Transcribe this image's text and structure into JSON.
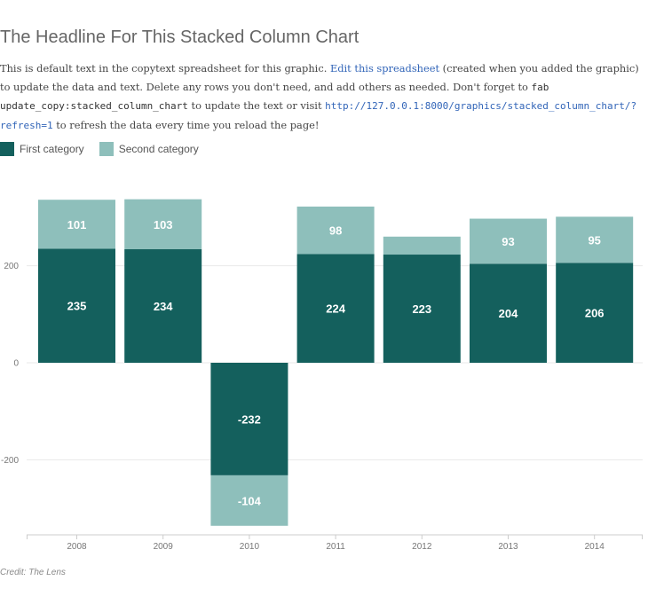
{
  "headline": "The Headline For This Stacked Column Chart",
  "intro": {
    "text_1": "This is default text in the copytext spreadsheet for this graphic. ",
    "link_label": "Edit this spreadsheet",
    "text_2": " (created when you added the graphic) to update the data and text. Delete any rows you don't need, and add others as needed. Don't forget to ",
    "command": "fab update_copy:stacked_column_chart",
    "text_3": " to update the text or visit ",
    "url": "http://127.0.0.1:8000/graphics/stacked_column_chart/?refresh=1",
    "text_4": " to refresh the data every time you reload the page!"
  },
  "legend": [
    {
      "label": "First category",
      "color": "#14605d"
    },
    {
      "label": "Second category",
      "color": "#8ebfbb"
    }
  ],
  "credit": "Credit: The Lens",
  "chart_data": {
    "type": "bar",
    "stacked": true,
    "categories": [
      "2008",
      "2009",
      "2010",
      "2011",
      "2012",
      "2013",
      "2014"
    ],
    "series": [
      {
        "name": "First category",
        "color": "#14605d",
        "values": [
          235,
          234,
          -232,
          224,
          223,
          204,
          206
        ]
      },
      {
        "name": "Second category",
        "color": "#8ebfbb",
        "values": [
          101,
          103,
          -104,
          98,
          37,
          93,
          95
        ]
      }
    ],
    "data_labels": [
      [
        "235",
        "234",
        "-232",
        "224",
        "223",
        "204",
        "206"
      ],
      [
        "101",
        "103",
        "-104",
        "98",
        "",
        "93",
        "95"
      ]
    ],
    "yticks": [
      {
        "value": 200,
        "label": "200"
      },
      {
        "value": 0,
        "label": "0"
      },
      {
        "value": -200,
        "label": "-200"
      }
    ],
    "ylim": [
      -350,
      340
    ],
    "grid": true,
    "legend_position": "top-left"
  }
}
